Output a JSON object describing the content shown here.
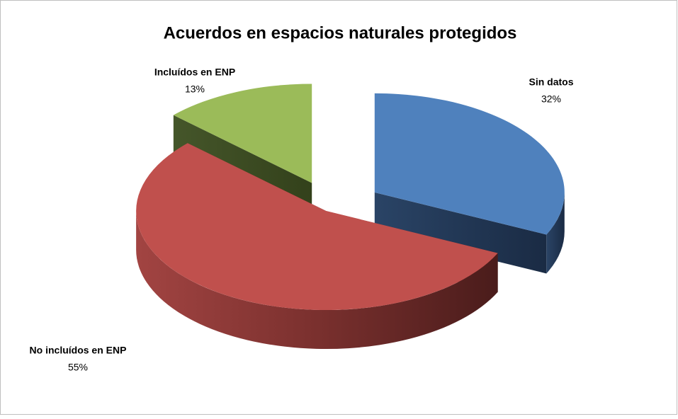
{
  "chart_data": {
    "type": "pie",
    "title": "Acuerdos en espacios naturales protegidos",
    "categories": [
      "Sin datos",
      "No incluídos en ENP",
      "Incluídos en ENP"
    ],
    "values": [
      32,
      55,
      13
    ],
    "value_labels": [
      "32%",
      "55%",
      "13%"
    ],
    "colors": [
      "#4f81bd",
      "#c0504d",
      "#9bbb59"
    ]
  }
}
